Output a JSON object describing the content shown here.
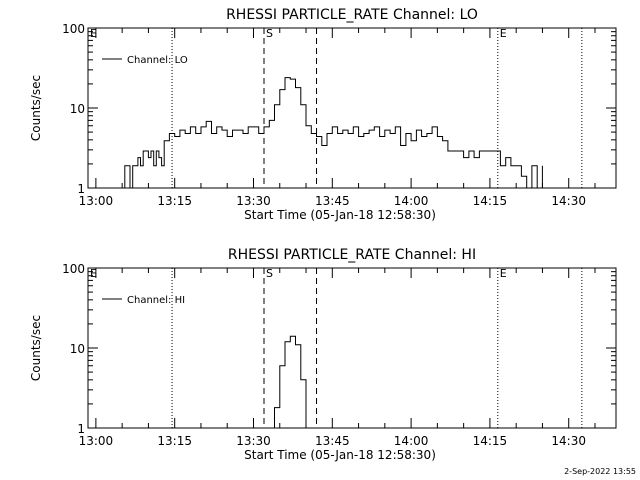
{
  "footer": {
    "timestamp": "2-Sep-2022 13:55"
  },
  "chart_data": [
    {
      "type": "line",
      "title": "RHESSI PARTICLE_RATE Channel: LO",
      "xlabel": "Start Time (05-Jan-18 12:58:30)",
      "ylabel": "Counts/sec",
      "y_scale": "log",
      "ylim": [
        1,
        100
      ],
      "y_ticks": [
        "1",
        "10",
        "100"
      ],
      "xlim": [
        "12:58:30",
        "14:39:00"
      ],
      "x_ticks": [
        "13:00",
        "13:15",
        "13:30",
        "13:45",
        "14:00",
        "14:15",
        "14:30"
      ],
      "legend": {
        "entries": [
          "Channel: LO"
        ],
        "position": "top-left"
      },
      "markers": [
        {
          "label": "E",
          "time": "12:58:30",
          "style": "none"
        },
        {
          "label": "",
          "time": "13:14:30",
          "style": "dotted"
        },
        {
          "label": "S",
          "time": "13:32:00",
          "style": "dashed"
        },
        {
          "label": "",
          "time": "13:42:00",
          "style": "dashed"
        },
        {
          "label": "E",
          "time": "14:16:30",
          "style": "dotted"
        },
        {
          "label": "",
          "time": "14:32:30",
          "style": "dotted"
        }
      ],
      "series": [
        {
          "name": "Channel: LO",
          "x": [
            "13:04:30",
            "13:05:30",
            "13:06:00",
            "13:06:30",
            "13:07:00",
            "13:08:00",
            "13:08:30",
            "13:09:00",
            "13:10:00",
            "13:10:30",
            "13:11:00",
            "13:11:30",
            "13:12:00",
            "13:12:30",
            "13:13:00",
            "13:14:00",
            "13:15:00",
            "13:16:00",
            "13:17:00",
            "13:18:00",
            "13:19:00",
            "13:20:00",
            "13:21:00",
            "13:22:00",
            "13:23:00",
            "13:24:00",
            "13:25:00",
            "13:26:00",
            "13:27:00",
            "13:28:00",
            "13:29:00",
            "13:30:00",
            "13:31:00",
            "13:32:00",
            "13:33:00",
            "13:34:00",
            "13:35:00",
            "13:36:00",
            "13:37:00",
            "13:38:00",
            "13:39:00",
            "13:40:00",
            "13:41:00",
            "13:42:00",
            "13:43:00",
            "13:44:00",
            "13:45:00",
            "13:46:00",
            "13:47:00",
            "13:48:00",
            "13:49:00",
            "13:50:00",
            "13:51:00",
            "13:52:00",
            "13:53:00",
            "13:54:00",
            "13:55:00",
            "13:56:00",
            "13:57:00",
            "13:58:00",
            "13:59:00",
            "14:00:00",
            "14:01:00",
            "14:02:00",
            "14:03:00",
            "14:04:00",
            "14:05:00",
            "14:06:00",
            "14:07:00",
            "14:08:00",
            "14:09:00",
            "14:10:00",
            "14:11:00",
            "14:12:00",
            "14:13:00",
            "14:14:00",
            "14:15:00",
            "14:16:00",
            "14:17:00",
            "14:18:00",
            "14:19:00",
            "14:20:00",
            "14:21:00",
            "14:22:00",
            "14:23:00",
            "14:24:00",
            "14:25:00"
          ],
          "y": [
            0.8,
            1.9,
            1.9,
            0.8,
            1.9,
            2.4,
            1.9,
            2.9,
            2.4,
            2.9,
            1.9,
            2.9,
            2.4,
            1.9,
            3.9,
            4.8,
            4.4,
            5.3,
            4.8,
            5.8,
            4.8,
            5.8,
            6.8,
            4.8,
            5.8,
            5.3,
            4.4,
            5.3,
            5.3,
            4.8,
            5.8,
            5.8,
            4.8,
            5.8,
            7.0,
            11.0,
            17.0,
            24.0,
            23.0,
            18.0,
            11.0,
            6.0,
            4.8,
            4.4,
            3.4,
            4.8,
            5.8,
            4.8,
            5.3,
            4.8,
            5.8,
            4.4,
            4.8,
            5.3,
            5.8,
            4.4,
            5.3,
            4.8,
            5.8,
            3.4,
            4.8,
            3.9,
            5.3,
            4.4,
            4.8,
            5.8,
            4.4,
            3.9,
            2.9,
            2.9,
            2.9,
            2.4,
            2.9,
            2.4,
            2.9,
            2.9,
            2.9,
            2.9,
            1.9,
            2.4,
            1.9,
            1.9,
            1.4,
            0.8,
            1.9,
            0.8,
            1.9
          ]
        }
      ]
    },
    {
      "type": "line",
      "title": "RHESSI PARTICLE_RATE Channel: HI",
      "xlabel": "Start Time (05-Jan-18 12:58:30)",
      "ylabel": "Counts/sec",
      "y_scale": "log",
      "ylim": [
        1,
        100
      ],
      "y_ticks": [
        "1",
        "10",
        "100"
      ],
      "xlim": [
        "12:58:30",
        "14:39:00"
      ],
      "x_ticks": [
        "13:00",
        "13:15",
        "13:30",
        "13:45",
        "14:00",
        "14:15",
        "14:30"
      ],
      "legend": {
        "entries": [
          "Channel: HI"
        ],
        "position": "top-left"
      },
      "markers": [
        {
          "label": "E",
          "time": "12:58:30",
          "style": "none"
        },
        {
          "label": "",
          "time": "13:14:30",
          "style": "dotted"
        },
        {
          "label": "S",
          "time": "13:32:00",
          "style": "dashed"
        },
        {
          "label": "",
          "time": "13:42:00",
          "style": "dashed"
        },
        {
          "label": "E",
          "time": "14:16:30",
          "style": "dotted"
        },
        {
          "label": "",
          "time": "14:32:30",
          "style": "dotted"
        }
      ],
      "series": [
        {
          "name": "Channel: HI",
          "x": [
            "13:33:00",
            "13:34:00",
            "13:35:00",
            "13:36:00",
            "13:37:00",
            "13:38:00",
            "13:39:00",
            "13:40:00"
          ],
          "y": [
            0.8,
            1.8,
            6.0,
            12.0,
            14.0,
            11.0,
            4.0,
            0.8
          ]
        }
      ]
    }
  ]
}
